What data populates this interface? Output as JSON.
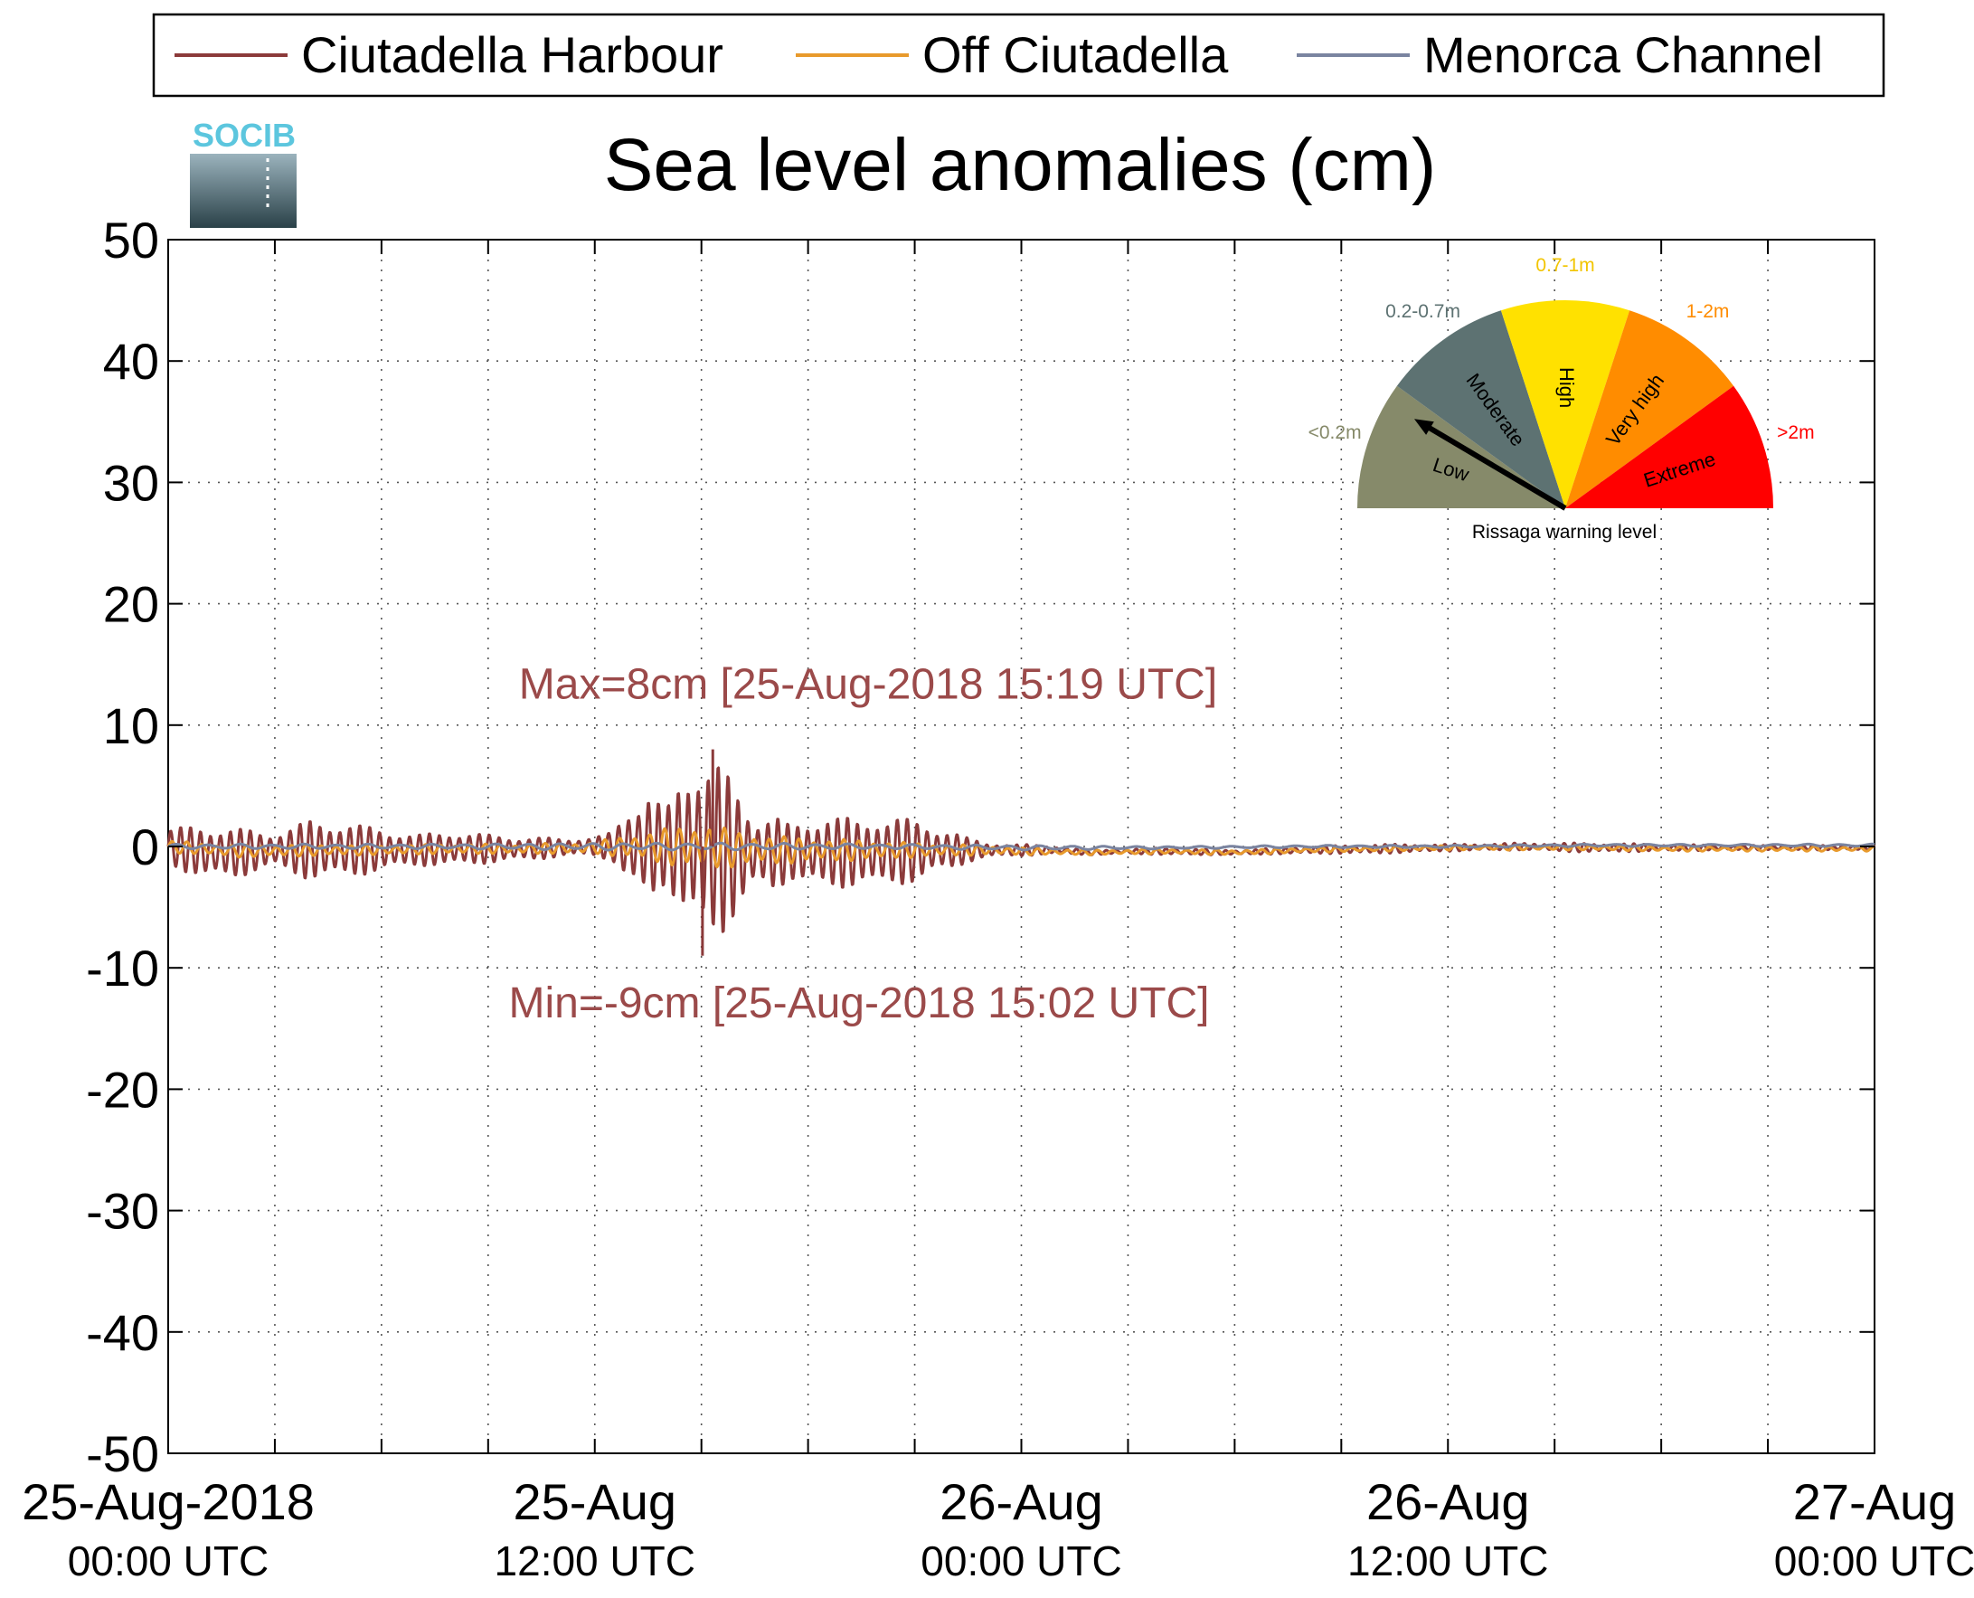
{
  "chart_data": {
    "type": "line",
    "title": "Sea level anomalies (cm)",
    "logo_text": "SOCIB",
    "ylim": [
      -50,
      50
    ],
    "yticks": [
      50,
      40,
      30,
      20,
      10,
      0,
      -10,
      -20,
      -30,
      -40,
      -50
    ],
    "xlim": [
      "2018-08-25 00:00",
      "2018-08-27 00:00"
    ],
    "xtick_hours": [
      0,
      3,
      6,
      9,
      12,
      15,
      18,
      21,
      24,
      27,
      30,
      33,
      36,
      39,
      42,
      45,
      48
    ],
    "xtick_labels": [
      {
        "hour": 0,
        "line1": "25-Aug-2018",
        "line2": "00:00 UTC"
      },
      {
        "hour": 12,
        "line1": "25-Aug",
        "line2": "12:00 UTC"
      },
      {
        "hour": 24,
        "line1": "26-Aug",
        "line2": "00:00 UTC"
      },
      {
        "hour": 36,
        "line1": "26-Aug",
        "line2": "12:00 UTC"
      },
      {
        "hour": 48,
        "line1": "27-Aug",
        "line2": "00:00 UTC"
      }
    ],
    "grid": true,
    "legend_position": "top",
    "series": [
      {
        "name": "Ciutadella Harbour",
        "color": "#8b3a3a",
        "x_hours": [
          0,
          1,
          2,
          3,
          4,
          5,
          6,
          7,
          8,
          9,
          10,
          11,
          12,
          12.5,
          13,
          13.5,
          14,
          14.5,
          15,
          15.5,
          16,
          16.5,
          17,
          17.5,
          18,
          18.5,
          19,
          19.5,
          20,
          20.5,
          21,
          21.5,
          22,
          22.5,
          23,
          23.5,
          24,
          25,
          26,
          27,
          28,
          30,
          32,
          34,
          36,
          38,
          40,
          42,
          44,
          46,
          48
        ],
        "envelope_cm": [
          1.5,
          2.3,
          2.0,
          1.5,
          2.5,
          2.3,
          1.8,
          1.3,
          1.5,
          1.2,
          1.0,
          0.8,
          0.8,
          1.2,
          3.5,
          5.0,
          3.0,
          6.0,
          8.0,
          7.5,
          5.0,
          3.0,
          3.5,
          2.2,
          2.6,
          3.5,
          3.0,
          2.5,
          3.2,
          3.0,
          2.5,
          2.0,
          1.8,
          1.0,
          0.6,
          0.6,
          0.5,
          0.3,
          0.2,
          0.2,
          0.3,
          0.2,
          0.3,
          0.4,
          0.3,
          0.3,
          0.4,
          0.3,
          0.2,
          0.2,
          0.2
        ],
        "baseline_cm": [
          0,
          -0.5,
          -0.5,
          -0.3,
          -0.3,
          -0.3,
          -0.3,
          -0.3,
          -0.2,
          -0.2,
          -0.2,
          -0.1,
          0,
          0,
          0,
          0,
          0,
          0,
          0,
          -0.3,
          -0.5,
          -0.5,
          -0.5,
          -0.5,
          -0.5,
          -0.5,
          -0.5,
          -0.5,
          -0.5,
          -0.4,
          -0.4,
          -0.3,
          -0.3,
          -0.3,
          -0.3,
          -0.3,
          -0.3,
          -0.3,
          -0.5,
          -0.4,
          -0.4,
          -0.5,
          -0.3,
          -0.2,
          -0.1,
          0,
          -0.1,
          -0.1,
          -0.1,
          -0.1,
          -0.1
        ],
        "max_cm": 8,
        "min_cm": -9
      },
      {
        "name": "Off Ciutadella",
        "color": "#e89a2c",
        "x_hours": [
          0,
          2,
          4,
          6,
          8,
          10,
          12,
          13,
          14,
          15,
          16,
          17,
          18,
          19,
          20,
          21,
          22,
          23,
          24,
          26,
          28,
          30,
          32,
          34,
          36,
          38,
          40,
          42,
          44,
          46,
          48
        ],
        "envelope_cm": [
          0.5,
          0.5,
          0.5,
          0.4,
          0.4,
          0.4,
          0.5,
          1.0,
          1.5,
          2.0,
          1.5,
          1.2,
          1.0,
          0.9,
          0.8,
          0.6,
          0.5,
          0.4,
          0.3,
          0.2,
          0.2,
          0.2,
          0.2,
          0.2,
          0.2,
          0.2,
          0.2,
          0.2,
          0.2,
          0.2,
          0.2
        ],
        "baseline_cm": [
          0,
          -0.4,
          -0.3,
          -0.3,
          -0.2,
          -0.2,
          -0.1,
          0,
          0,
          0,
          -0.2,
          -0.3,
          -0.3,
          -0.3,
          -0.3,
          -0.3,
          -0.3,
          -0.3,
          -0.4,
          -0.5,
          -0.4,
          -0.5,
          -0.3,
          -0.2,
          -0.1,
          -0.1,
          -0.1,
          -0.2,
          -0.2,
          -0.2,
          -0.2
        ]
      },
      {
        "name": "Menorca Channel",
        "color": "#7a84a0",
        "x_hours": [
          0,
          4,
          8,
          12,
          16,
          20,
          24,
          28,
          32,
          36,
          40,
          44,
          48
        ],
        "envelope_cm": [
          0.2,
          0.2,
          0.2,
          0.3,
          0.3,
          0.2,
          0.2,
          0.1,
          0.1,
          0.1,
          0.1,
          0.1,
          0.1
        ],
        "baseline_cm": [
          0,
          0,
          0,
          0,
          0,
          0,
          -0.1,
          -0.1,
          0,
          0,
          0.1,
          0.1,
          0.1
        ]
      }
    ],
    "annotations": [
      {
        "id": "max",
        "text": "Max=8cm [25-Aug-2018 15:19 UTC]",
        "color": "#9b4a4a",
        "x_hour": 15.32,
        "y_cm": 8
      },
      {
        "id": "min",
        "text": "Min=-9cm [25-Aug-2018 15:02 UTC]",
        "color": "#9b4a4a",
        "x_hour": 15.03,
        "y_cm": -9
      }
    ],
    "gauge": {
      "title": "Rissaga warning level",
      "needle_level": "Low",
      "sectors": [
        {
          "label": "Low",
          "range_label": "<0.2m",
          "color": "#868a6a",
          "range_color": "#868a6a"
        },
        {
          "label": "Moderate",
          "range_label": "0.2-0.7m",
          "color": "#5d7272",
          "range_color": "#5d7272"
        },
        {
          "label": "High",
          "range_label": "0.7-1m",
          "color": "#ffe100",
          "range_color": "#f2c500"
        },
        {
          "label": "Very high",
          "range_label": "1-2m",
          "color": "#ff8c00",
          "range_color": "#ff8c00"
        },
        {
          "label": "Extreme",
          "range_label": ">2m",
          "color": "#ff0000",
          "range_color": "#ff0000"
        }
      ]
    }
  }
}
